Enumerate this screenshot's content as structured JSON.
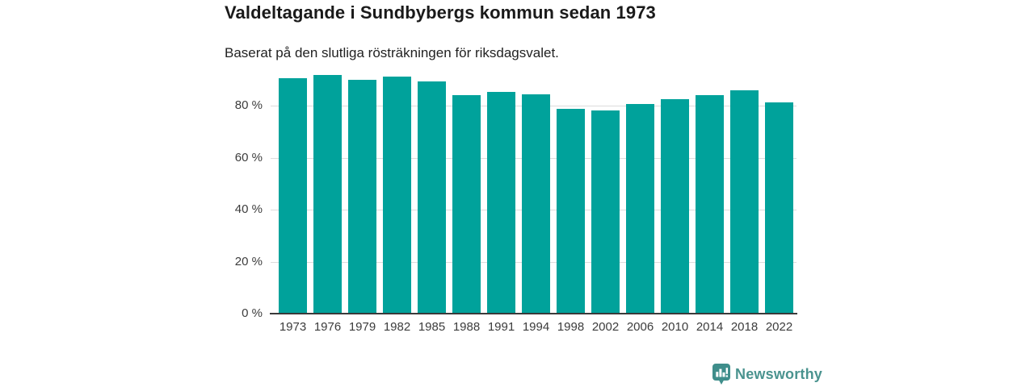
{
  "header": {
    "title": "Valdeltagande i Sundbybergs kommun sedan 1973",
    "subtitle": "Baserat på den slutliga rösträkningen för riksdagsvalet."
  },
  "chart_data": {
    "type": "bar",
    "title": "Valdeltagande i Sundbybergs kommun sedan 1973",
    "subtitle": "Baserat på den slutliga rösträkningen för riksdagsvalet.",
    "categories": [
      "1973",
      "1976",
      "1979",
      "1982",
      "1985",
      "1988",
      "1991",
      "1994",
      "1998",
      "2002",
      "2006",
      "2010",
      "2014",
      "2018",
      "2022"
    ],
    "values": [
      90.6,
      91.9,
      89.8,
      91.3,
      89.2,
      84.0,
      85.3,
      84.4,
      78.9,
      78.2,
      80.6,
      82.6,
      84.0,
      86.0,
      81.1
    ],
    "unit": "%",
    "xlabel": "",
    "ylabel": "",
    "ylim": [
      0,
      92
    ],
    "yticks": [
      0,
      20,
      40,
      60,
      80
    ],
    "ytick_suffix": " %",
    "grid": true,
    "legend": "none",
    "bar_color": "#00a29b"
  },
  "colors": {
    "bar": "#00a29b",
    "grid": "#dcdcdc",
    "axis": "#3a3a3a",
    "title": "#1a1a1a",
    "subtitle": "#222222",
    "tick": "#3c3c3c",
    "brand_text": "#4a938f",
    "brand_badge": "#3f8e8b"
  },
  "footer": {
    "brand": "Newsworthy",
    "logo_icon": "newsworthy-badge-icon"
  }
}
